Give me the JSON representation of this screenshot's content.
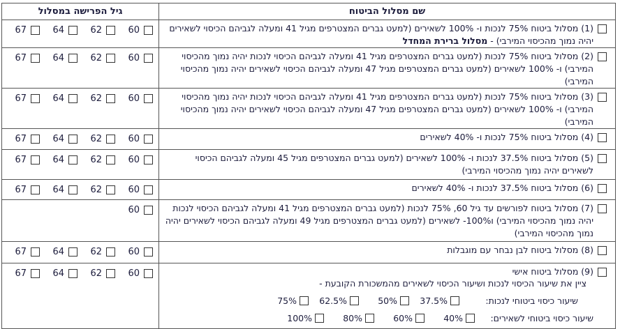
{
  "header": {
    "track": "שם מסלול הביטוח",
    "age": "גיל הפרישה במסלול"
  },
  "rows": [
    {
      "label": "(1) מסלול ביטוח 75% לנכות ו- 100% לשאירים (למעט גברים המצטרפים מגיל 41 ומעלה לגביהם הכיסוי לשאירים יהיה נמוך מהכיסוי המירבי) -",
      "bold": "מסלול ברירת המחדל",
      "ages": [
        "60",
        "62",
        "64",
        "67"
      ]
    },
    {
      "label": "(2) מסלול ביטוח 75% לנכות (למעט גברים המצטרפים מגיל 41 ומעלה לגביהם הכיסוי לנכות יהיה נמוך מהכיסוי המירבי) ו- 100% לשאירים (למעט גברים המצטרפים מגיל 47 ומעלה לגביהם הכיסוי לשאירים יהיה נמוך מהכיסוי המירבי)",
      "ages": [
        "60",
        "62",
        "64",
        "67"
      ]
    },
    {
      "label": "(3) מסלול ביטוח 75% לנכות (למעט גברים המצטרפים מגיל 41 ומעלה לגביהם הכיסוי לנכות יהיה נמוך מהכיסוי המירבי) ו- 100% לשאירים (למעט גברים המצטרפים מגיל 47 ומעלה לגביהם הכיסוי לשאירים יהיה נמוך מהכיסוי המירבי)",
      "ages": [
        "60",
        "62",
        "64",
        "67"
      ]
    },
    {
      "label": "(4) מסלול ביטוח 75% לנכות ו- 40% לשאירים",
      "ages": [
        "60",
        "62",
        "64",
        "67"
      ]
    },
    {
      "label": "(5) מסלול ביטוח 37.5% לנכות ו- 100% לשאירים (למעט גברים המצטרפים מגיל 45 ומעלה לגביהם הכיסוי לשאירים יהיה נמוך מהכיסוי המירבי)",
      "ages": [
        "60",
        "62",
        "64",
        "67"
      ]
    },
    {
      "label": "(6) מסלול ביטוח 37.5% לנכות ו- 40% לשאירים",
      "ages": [
        "60",
        "62",
        "64",
        "67"
      ]
    },
    {
      "label": "(7) מסלול ביטוח לפורשים עד גיל 60, 75% לנכות (למעט גברים המצטרפים מגיל 41 ומעלה לגביהם הכיסוי לנכות יהיה נמוך מהכיסוי המירבי) ו100%- לשאירים (למעט גברים המצטרפים מגיל 49 ומעלה לגביהם הכיסוי לשאירים יהיה נמוך מהכיסוי המירבי)",
      "ages": [
        "60"
      ]
    },
    {
      "label": "(8) מסלול ביטוח לבן נבחר עם מוגבלות",
      "ages": [
        "60",
        "62",
        "64",
        "67"
      ]
    },
    {
      "label": "(9) מסלול ביטוח אישי",
      "instruction": "ציין את שיעור הכיסוי לנכות ושיעור הכיסוי לשאירים מהמשכורת הקובעת -",
      "disability": {
        "label": "שיעור כיסוי ביטוחי לנכות:",
        "options": [
          "37.5%",
          "50%",
          "62.5%",
          "75%"
        ]
      },
      "survivors": {
        "label": "שיעור כיסוי ביטוחי לשאירים:",
        "options": [
          "40%",
          "60%",
          "80%",
          "100%"
        ]
      },
      "ages": [
        "60",
        "62",
        "64",
        "67"
      ]
    }
  ]
}
